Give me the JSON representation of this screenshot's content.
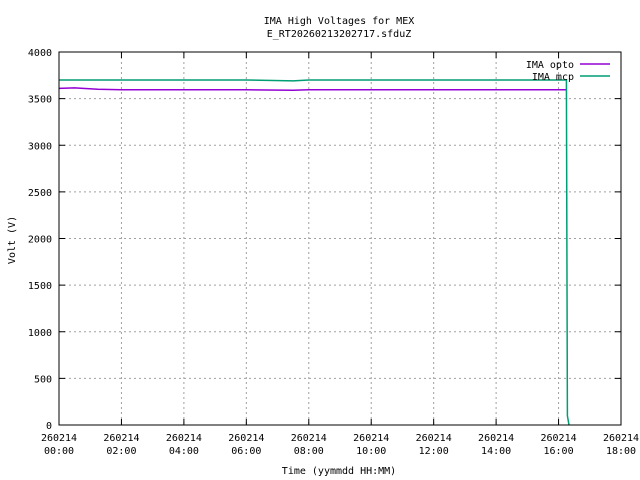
{
  "chart_data": {
    "type": "line",
    "title": "IMA High Voltages for MEX",
    "subtitle": "E_RT20260213202717.sfduZ",
    "xlabel": "Time (yymmdd HH:MM)",
    "ylabel": "Volt (V)",
    "xlim": [
      "260214 00:00",
      "260214 18:00"
    ],
    "ylim": [
      0,
      4000
    ],
    "x_ticks": [
      {
        "date": "260214",
        "time": "00:00"
      },
      {
        "date": "260214",
        "time": "02:00"
      },
      {
        "date": "260214",
        "time": "04:00"
      },
      {
        "date": "260214",
        "time": "06:00"
      },
      {
        "date": "260214",
        "time": "08:00"
      },
      {
        "date": "260214",
        "time": "10:00"
      },
      {
        "date": "260214",
        "time": "12:00"
      },
      {
        "date": "260214",
        "time": "14:00"
      },
      {
        "date": "260214",
        "time": "16:00"
      },
      {
        "date": "260214",
        "time": "18:00"
      }
    ],
    "y_ticks": [
      "0",
      "500",
      "1000",
      "1500",
      "2000",
      "2500",
      "3000",
      "3500",
      "4000"
    ],
    "grid": true,
    "legend_position": "top-right",
    "series": [
      {
        "name": "IMA opto",
        "color": "#9400d3",
        "x": [
          "260214 00:00",
          "260214 00:30",
          "260214 01:15",
          "260214 02:00",
          "260214 04:00",
          "260214 06:00",
          "260214 07:30",
          "260214 08:00",
          "260214 10:00",
          "260214 12:00",
          "260214 14:00",
          "260214 16:00",
          "260214 16:15"
        ],
        "y": [
          3610,
          3615,
          3600,
          3595,
          3595,
          3595,
          3590,
          3595,
          3595,
          3595,
          3595,
          3595,
          3595
        ]
      },
      {
        "name": "IMA mcp",
        "color": "#009e73",
        "x": [
          "260214 00:00",
          "260214 02:00",
          "260214 04:00",
          "260214 06:00",
          "260214 07:30",
          "260214 08:00",
          "260214 10:00",
          "260214 12:00",
          "260214 14:00",
          "260214 16:00",
          "260214 16:15",
          "260214 16:17",
          "260214 16:20"
        ],
        "y": [
          3700,
          3700,
          3700,
          3700,
          3690,
          3700,
          3700,
          3700,
          3700,
          3700,
          3700,
          100,
          0
        ]
      }
    ]
  }
}
